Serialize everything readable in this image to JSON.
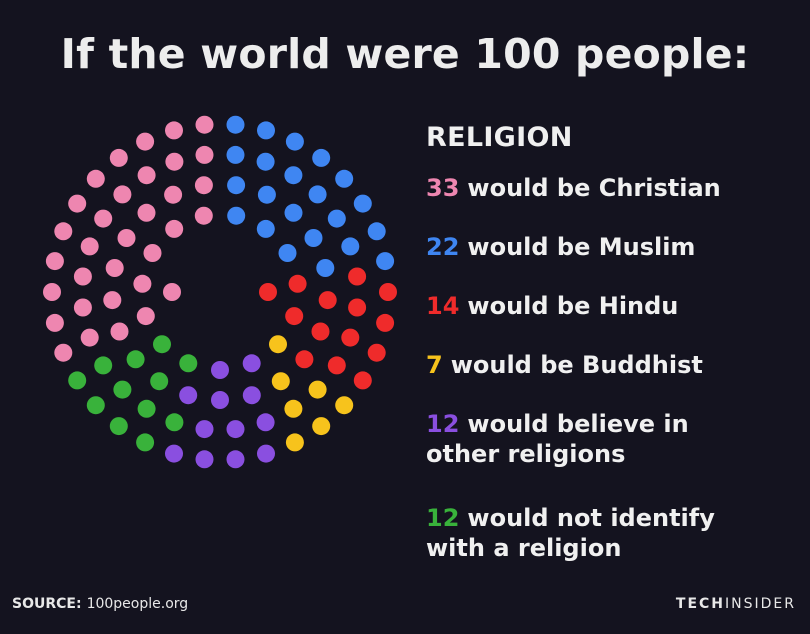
{
  "title": "If the world were 100 people:",
  "legend": {
    "heading": "RELIGION",
    "items": [
      {
        "count": "33",
        "text": "would be Christian",
        "color": "#ee86b0"
      },
      {
        "count": "22",
        "text": "would be Muslim",
        "color": "#3f86f2"
      },
      {
        "count": "14",
        "text": "would be Hindu",
        "color": "#ef2b2b"
      },
      {
        "count": "7",
        "text": "would be Buddhist",
        "color": "#f7c31c"
      },
      {
        "count": "12",
        "text": "would believe in other religions",
        "color": "#8a4fe0"
      },
      {
        "count": "12",
        "text": "would not identify with a religion",
        "color": "#39b23b"
      }
    ]
  },
  "chart_data": {
    "type": "pie",
    "title": "If the world were 100 people:",
    "subtitle": "RELIGION",
    "unit": "people out of 100",
    "categories": [
      "would be Christian",
      "would be Muslim",
      "would be Hindu",
      "would be Buddhist",
      "would believe in other religions",
      "would not identify with a religion"
    ],
    "values": [
      33,
      22,
      14,
      7,
      12,
      12
    ],
    "colors": [
      "#ee86b0",
      "#3f86f2",
      "#ef2b2b",
      "#f7c31c",
      "#8a4fe0",
      "#39b23b"
    ],
    "legend": "right"
  },
  "source": {
    "label": "SOURCE:",
    "value": "100people.org"
  },
  "brand": {
    "part1": "TECH",
    "part2": "INSIDER"
  }
}
